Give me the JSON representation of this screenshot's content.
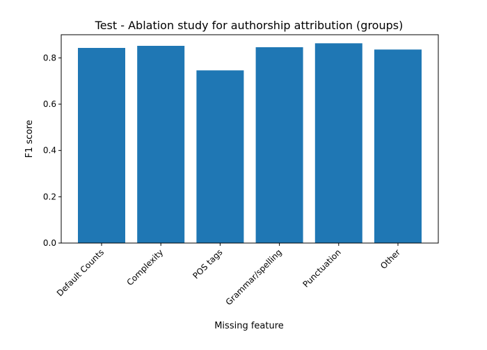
{
  "chart_data": {
    "type": "bar",
    "title": "Test - Ablation study for authorship attribution (groups)",
    "xlabel": "Missing feature",
    "ylabel": "F1 score",
    "categories": [
      "Default Counts",
      "Complexity",
      "POS tags",
      "Grammar/spelling",
      "Punctuation",
      "Other"
    ],
    "values": [
      0.843,
      0.852,
      0.746,
      0.846,
      0.863,
      0.836
    ],
    "ylim": [
      0,
      0.9
    ],
    "yticks": [
      0.0,
      0.2,
      0.4,
      0.6,
      0.8
    ],
    "ytick_labels": [
      "0.0",
      "0.2",
      "0.4",
      "0.6",
      "0.8"
    ],
    "bar_color": "#1f77b4",
    "grid": false
  }
}
